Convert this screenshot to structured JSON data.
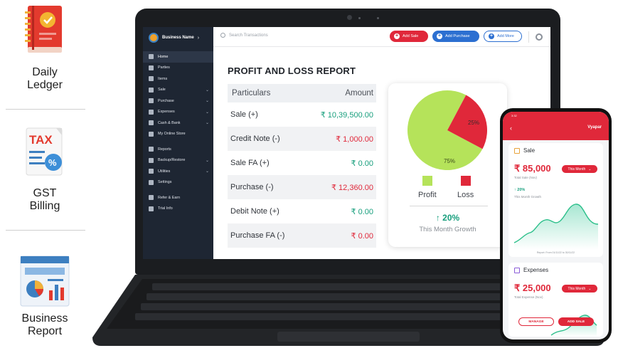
{
  "features": [
    {
      "label_line1": "Daily",
      "label_line2": "Ledger",
      "icon": "ledger-book-icon"
    },
    {
      "label_line1": "GST",
      "label_line2": "Billing",
      "icon": "tax-document-icon",
      "icon_text": "TAX"
    },
    {
      "label_line1": "Business",
      "label_line2": "Report",
      "icon": "report-dashboard-icon"
    }
  ],
  "app": {
    "business_name": "Business Name",
    "search_placeholder": "Search Transactions",
    "buttons": {
      "add_sale": "Add Sale",
      "add_purchase": "Add Purchase",
      "add_more": "Add More"
    },
    "nav": [
      {
        "label": "Home",
        "active": true,
        "caret": false
      },
      {
        "label": "Parties",
        "active": false,
        "caret": false
      },
      {
        "label": "Items",
        "active": false,
        "caret": false
      },
      {
        "label": "Sale",
        "active": false,
        "caret": true
      },
      {
        "label": "Purchase",
        "active": false,
        "caret": true
      },
      {
        "label": "Expenses",
        "active": false,
        "caret": true
      },
      {
        "label": "Cash & Bank",
        "active": false,
        "caret": true
      },
      {
        "label": "My Online Store",
        "active": false,
        "caret": false
      },
      {
        "label": "Reports",
        "active": false,
        "caret": false
      },
      {
        "label": "Backup/Restore",
        "active": false,
        "caret": true
      },
      {
        "label": "Utilities",
        "active": false,
        "caret": true
      },
      {
        "label": "Settings",
        "active": false,
        "caret": false
      },
      {
        "label": "Refer & Earn",
        "active": false,
        "caret": false
      },
      {
        "label": "Trial Info",
        "active": false,
        "caret": false
      }
    ],
    "report": {
      "title": "PROFIT AND LOSS REPORT",
      "col_particulars": "Particulars",
      "col_amount": "Amount",
      "rows": [
        {
          "label": "Sale (+)",
          "amount": "₹ 10,39,500.00",
          "tone": "green"
        },
        {
          "label": "Credit Note (-)",
          "amount": "₹ 1,000.00",
          "tone": "red"
        },
        {
          "label": "Sale FA (+)",
          "amount": "₹ 0.00",
          "tone": "green"
        },
        {
          "label": "Purchase (-)",
          "amount": "₹ 12,360.00",
          "tone": "red"
        },
        {
          "label": "Debit Note (+)",
          "amount": "₹ 0.00",
          "tone": "green"
        },
        {
          "label": "Purchase FA (-)",
          "amount": "₹ 0.00",
          "tone": "red"
        }
      ]
    },
    "pie": {
      "profit_label": "Profit",
      "loss_label": "Loss",
      "profit_pct": 75,
      "loss_pct": 25,
      "profit_text": "75%",
      "loss_text": "25%",
      "profit_color": "#b5e35a",
      "loss_color": "#e0283a",
      "growth_value": "↑ 20%",
      "growth_label": "This Month Growth"
    }
  },
  "phone": {
    "brand": "Vyapar",
    "status_time": "3:32",
    "sale": {
      "title": "Sale",
      "amount": "₹ 85,000",
      "sub": "Total Sale (Nov)",
      "period": "This Month",
      "growth": "↑ 20%",
      "growth_label": "This Month Growth",
      "footer": "Report: From 01/11/22 to 30/11/22"
    },
    "expenses": {
      "title": "Expenses",
      "amount": "₹ 25,000",
      "sub": "Total Expense (Nov)",
      "period": "This Month"
    },
    "buttons": {
      "manage": "MANAGE",
      "add_sale": "ADD SALE"
    }
  }
}
